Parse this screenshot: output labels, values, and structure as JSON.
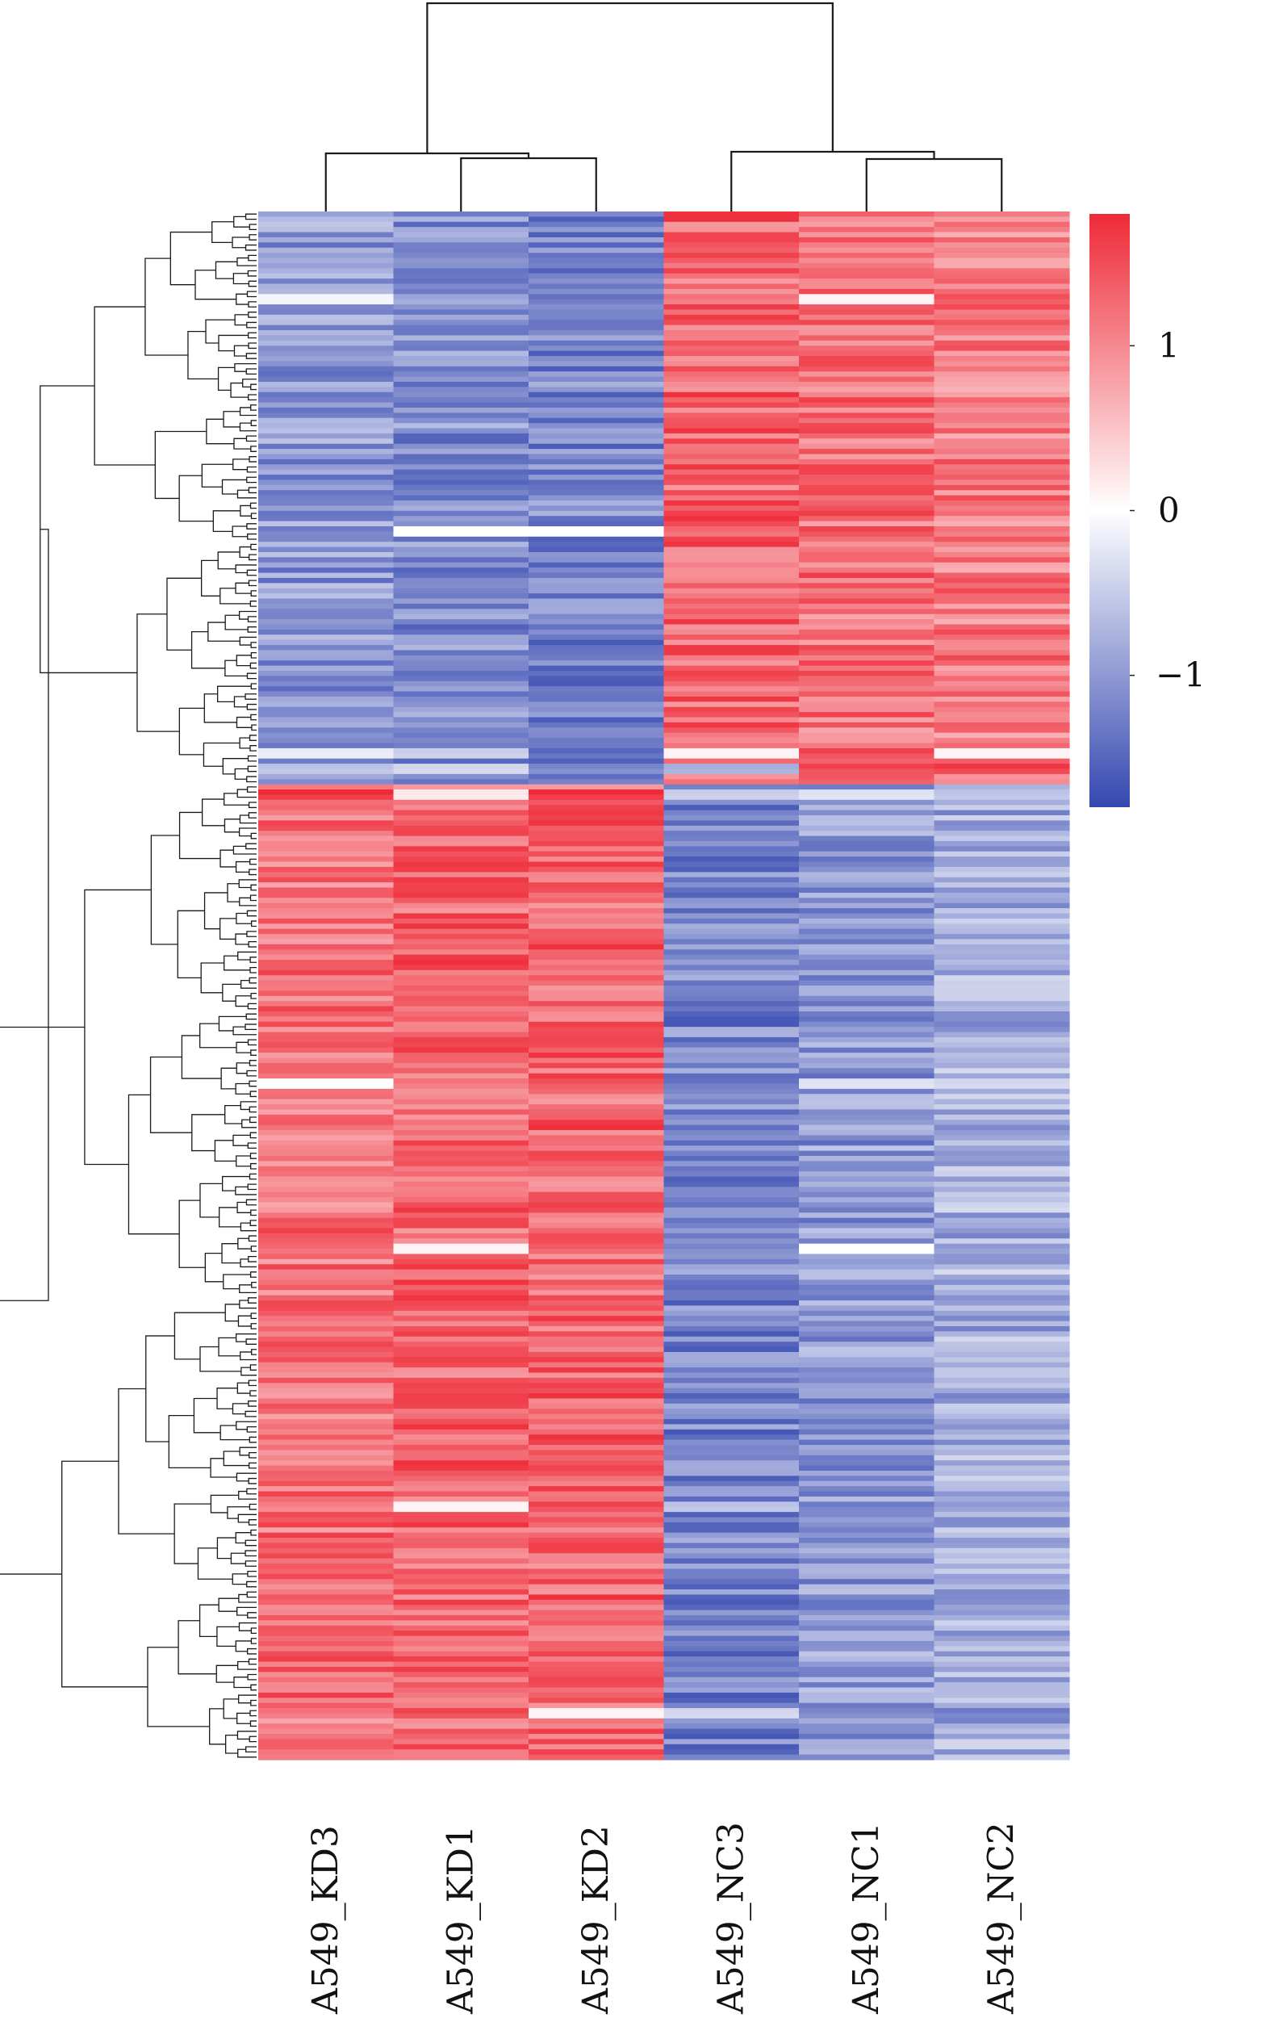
{
  "chart_data": {
    "type": "heatmap",
    "columns": [
      "A549_KD3",
      "A549_KD1",
      "A549_KD2",
      "A549_NC3",
      "A549_NC1",
      "A549_NC2"
    ],
    "n_rows": 300,
    "color_scale": {
      "low": "#3548b0",
      "mid": "#ffffff",
      "high": "#ee2a37",
      "min": -1.8,
      "max": 1.8,
      "ticks": [
        {
          "value": 1,
          "label": "1"
        },
        {
          "value": 0,
          "label": "0"
        },
        {
          "value": -1,
          "label": "−1"
        }
      ]
    },
    "row_clusters": [
      {
        "id": "cluster_top",
        "rows": [
          0,
          110
        ],
        "column_mean_values": [
          -1.0,
          -1.1,
          -1.2,
          1.3,
          1.2,
          1.1
        ],
        "notable_rows": [
          {
            "row": 16,
            "values": [
              -0.1,
              -0.9,
              -1.4,
              1.2,
              0.1,
              1.5
            ]
          },
          {
            "row": 61,
            "values": [
              -1.3,
              0.0,
              0.0,
              1.3,
              1.6,
              1.2
            ]
          },
          {
            "row": 104,
            "values": [
              -0.2,
              -0.5,
              -1.5,
              0.1,
              1.6,
              0.1
            ]
          },
          {
            "row": 107,
            "values": [
              -0.6,
              -0.4,
              -1.2,
              -0.8,
              1.6,
              1.7
            ]
          }
        ]
      },
      {
        "id": "cluster_bottom",
        "rows": [
          111,
          299
        ],
        "column_mean_values": [
          1.2,
          1.3,
          1.3,
          -1.2,
          -1.0,
          -0.8
        ],
        "notable_rows": [
          {
            "row": 112,
            "values": [
              1.8,
              0.2,
              1.8,
              -0.5,
              -0.3,
              -0.6
            ]
          },
          {
            "row": 168,
            "values": [
              0.0,
              1.2,
              1.5,
              -1.4,
              -0.3,
              -0.4
            ]
          },
          {
            "row": 200,
            "values": [
              1.3,
              0.1,
              1.4,
              -1.2,
              0.0,
              -1.0
            ]
          },
          {
            "row": 250,
            "values": [
              1.1,
              0.1,
              1.6,
              -0.6,
              -1.3,
              -1.0
            ]
          },
          {
            "row": 290,
            "values": [
              1.2,
              1.6,
              0.1,
              -0.4,
              -1.2,
              -1.3
            ]
          }
        ]
      }
    ],
    "column_dendrogram": [
      {
        "merge": [
          "A549_KD1",
          "A549_KD2"
        ],
        "height": 0.88
      },
      {
        "merge": [
          "A549_KD3",
          "KD1+KD2"
        ],
        "height": 0.92
      },
      {
        "merge": [
          "A549_NC1",
          "A549_NC2"
        ],
        "height": 0.87
      },
      {
        "merge": [
          "A549_NC3",
          "NC1+NC2"
        ],
        "height": 0.94
      },
      {
        "merge": [
          "KD",
          "NC"
        ],
        "height": 3.2
      }
    ],
    "row_dendrogram": "hierarchical clustering of 300 rows into two main branches",
    "legend": "right",
    "grid": false
  }
}
